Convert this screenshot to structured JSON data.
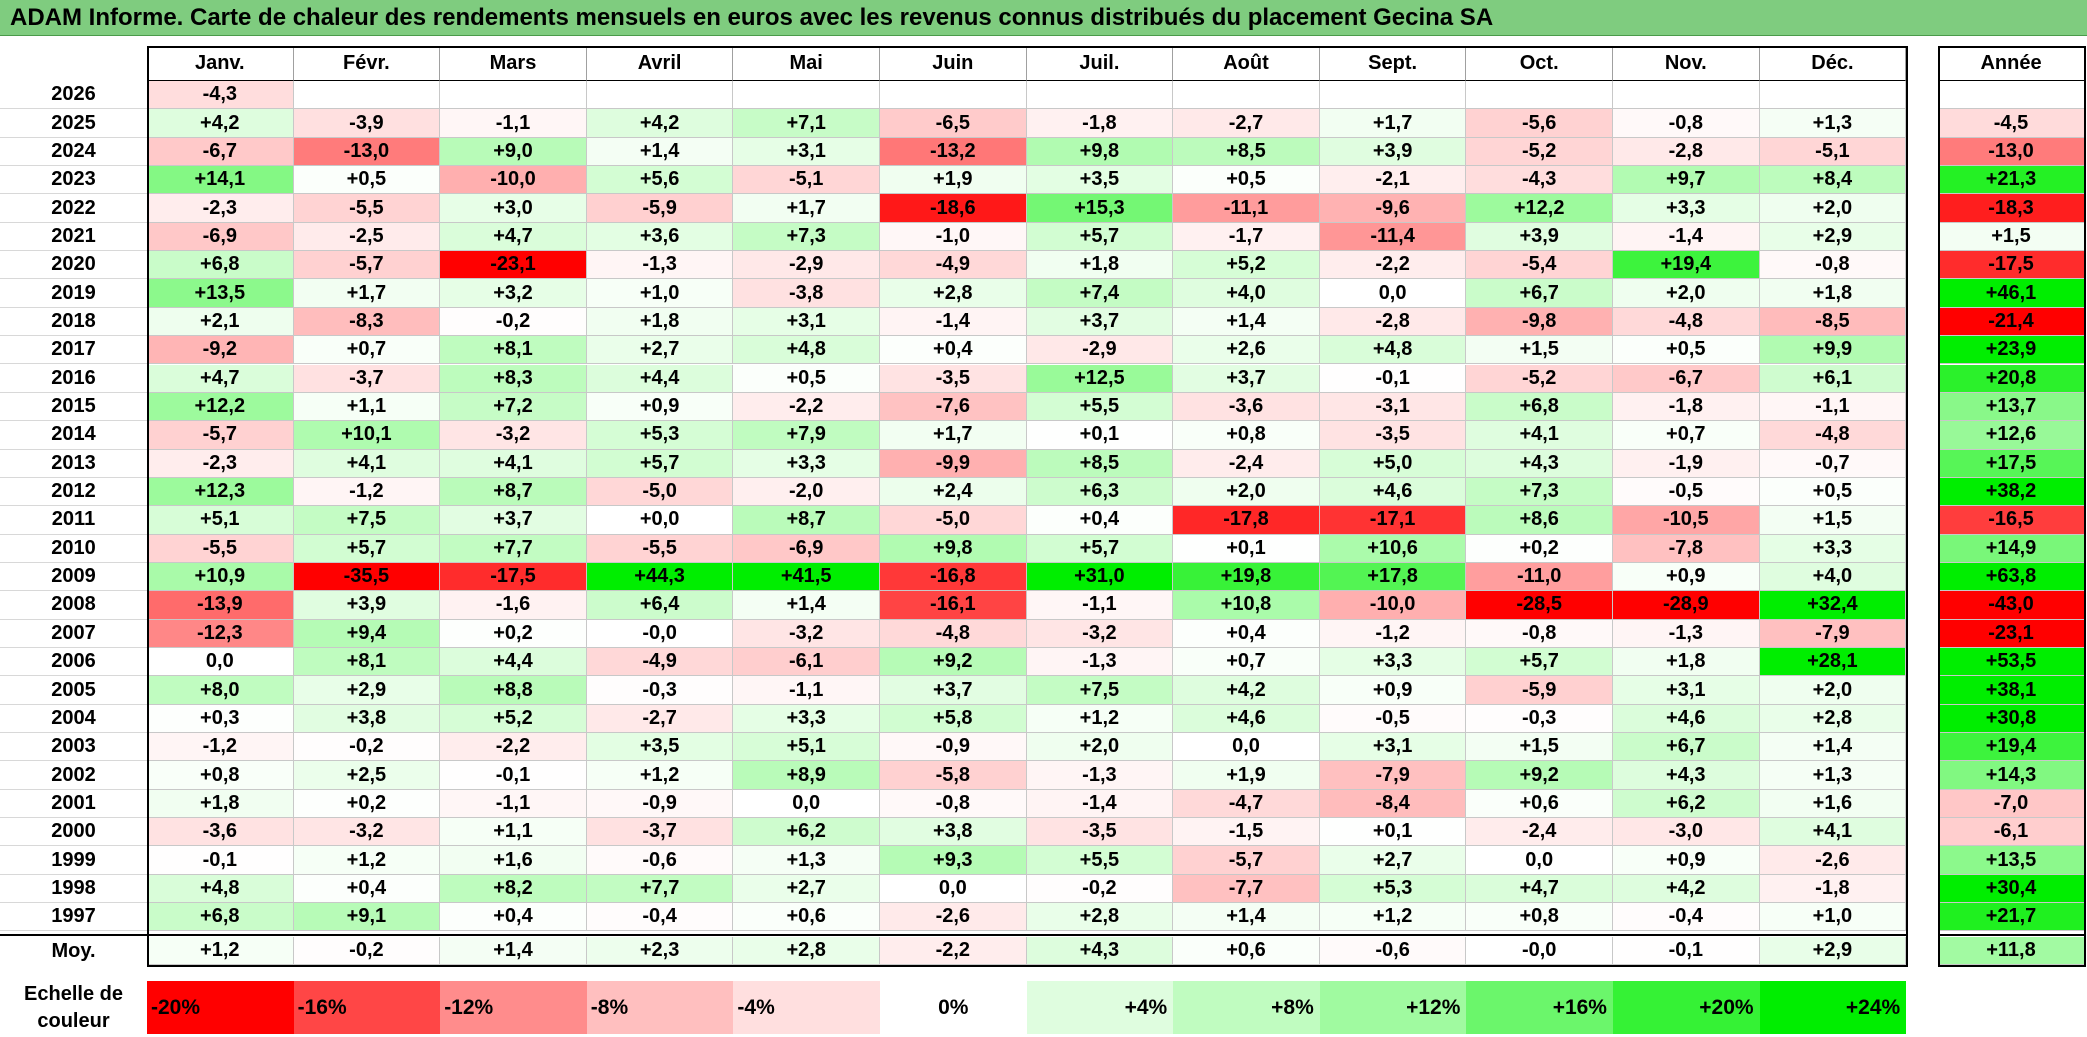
{
  "title": "ADAM Informe. Carte de chaleur des rendements mensuels en euros avec les revenus connus distribués du placement Gecina SA",
  "colors": {
    "positive_max": "#00ee00",
    "negative_max": "#ff0000",
    "neutral": "#ffffff",
    "title_bg": "#7fcc7f"
  },
  "chart_data": {
    "type": "heatmap",
    "title": "ADAM Informe. Carte de chaleur des rendements mensuels en euros avec les revenus connus distribués du placement Gecina SA",
    "columns": [
      "Janv.",
      "Févr.",
      "Mars",
      "Avril",
      "Mai",
      "Juin",
      "Juil.",
      "Août",
      "Sept.",
      "Oct.",
      "Nov.",
      "Déc."
    ],
    "year_column_label": "Année",
    "rows": [
      {
        "year": "2026",
        "values": [
          "-4,3",
          "",
          "",
          "",
          "",
          "",
          "",
          "",
          "",
          "",
          "",
          ""
        ],
        "annual": ""
      },
      {
        "year": "2025",
        "values": [
          "+4,2",
          "-3,9",
          "-1,1",
          "+4,2",
          "+7,1",
          "-6,5",
          "-1,8",
          "-2,7",
          "+1,7",
          "-5,6",
          "-0,8",
          "+1,3"
        ],
        "annual": "-4,5"
      },
      {
        "year": "2024",
        "values": [
          "-6,7",
          "-13,0",
          "+9,0",
          "+1,4",
          "+3,1",
          "-13,2",
          "+9,8",
          "+8,5",
          "+3,9",
          "-5,2",
          "-2,8",
          "-5,1"
        ],
        "annual": "-13,0"
      },
      {
        "year": "2023",
        "values": [
          "+14,1",
          "+0,5",
          "-10,0",
          "+5,6",
          "-5,1",
          "+1,9",
          "+3,5",
          "+0,5",
          "-2,1",
          "-4,3",
          "+9,7",
          "+8,4"
        ],
        "annual": "+21,3"
      },
      {
        "year": "2022",
        "values": [
          "-2,3",
          "-5,5",
          "+3,0",
          "-5,9",
          "+1,7",
          "-18,6",
          "+15,3",
          "-11,1",
          "-9,6",
          "+12,2",
          "+3,3",
          "+2,0"
        ],
        "annual": "-18,3"
      },
      {
        "year": "2021",
        "values": [
          "-6,9",
          "-2,5",
          "+4,7",
          "+3,6",
          "+7,3",
          "-1,0",
          "+5,7",
          "-1,7",
          "-11,4",
          "+3,9",
          "-1,4",
          "+2,9"
        ],
        "annual": "+1,5"
      },
      {
        "year": "2020",
        "values": [
          "+6,8",
          "-5,7",
          "-23,1",
          "-1,3",
          "-2,9",
          "-4,9",
          "+1,8",
          "+5,2",
          "-2,2",
          "-5,4",
          "+19,4",
          "-0,8"
        ],
        "annual": "-17,5"
      },
      {
        "year": "2019",
        "values": [
          "+13,5",
          "+1,7",
          "+3,2",
          "+1,0",
          "-3,8",
          "+2,8",
          "+7,4",
          "+4,0",
          "0,0",
          "+6,7",
          "+2,0",
          "+1,8"
        ],
        "annual": "+46,1"
      },
      {
        "year": "2018",
        "values": [
          "+2,1",
          "-8,3",
          "-0,2",
          "+1,8",
          "+3,1",
          "-1,4",
          "+3,7",
          "+1,4",
          "-2,8",
          "-9,8",
          "-4,8",
          "-8,5"
        ],
        "annual": "-21,4"
      },
      {
        "year": "2017",
        "values": [
          "-9,2",
          "+0,7",
          "+8,1",
          "+2,7",
          "+4,8",
          "+0,4",
          "-2,9",
          "+2,6",
          "+4,8",
          "+1,5",
          "+0,5",
          "+9,9"
        ],
        "annual": "+23,9"
      },
      {
        "year": "2016",
        "values": [
          "+4,7",
          "-3,7",
          "+8,3",
          "+4,4",
          "+0,5",
          "-3,5",
          "+12,5",
          "+3,7",
          "-0,1",
          "-5,2",
          "-6,7",
          "+6,1"
        ],
        "annual": "+20,8"
      },
      {
        "year": "2015",
        "values": [
          "+12,2",
          "+1,1",
          "+7,2",
          "+0,9",
          "-2,2",
          "-7,6",
          "+5,5",
          "-3,6",
          "-3,1",
          "+6,8",
          "-1,8",
          "-1,1"
        ],
        "annual": "+13,7"
      },
      {
        "year": "2014",
        "values": [
          "-5,7",
          "+10,1",
          "-3,2",
          "+5,3",
          "+7,9",
          "+1,7",
          "+0,1",
          "+0,8",
          "-3,5",
          "+4,1",
          "+0,7",
          "-4,8"
        ],
        "annual": "+12,6"
      },
      {
        "year": "2013",
        "values": [
          "-2,3",
          "+4,1",
          "+4,1",
          "+5,7",
          "+3,3",
          "-9,9",
          "+8,5",
          "-2,4",
          "+5,0",
          "+4,3",
          "-1,9",
          "-0,7"
        ],
        "annual": "+17,5"
      },
      {
        "year": "2012",
        "values": [
          "+12,3",
          "-1,2",
          "+8,7",
          "-5,0",
          "-2,0",
          "+2,4",
          "+6,3",
          "+2,0",
          "+4,6",
          "+7,3",
          "-0,5",
          "+0,5"
        ],
        "annual": "+38,2"
      },
      {
        "year": "2011",
        "values": [
          "+5,1",
          "+7,5",
          "+3,7",
          "+0,0",
          "+8,7",
          "-5,0",
          "+0,4",
          "-17,8",
          "-17,1",
          "+8,6",
          "-10,5",
          "+1,5"
        ],
        "annual": "-16,5"
      },
      {
        "year": "2010",
        "values": [
          "-5,5",
          "+5,7",
          "+7,7",
          "-5,5",
          "-6,9",
          "+9,8",
          "+5,7",
          "+0,1",
          "+10,6",
          "+0,2",
          "-7,8",
          "+3,3"
        ],
        "annual": "+14,9"
      },
      {
        "year": "2009",
        "values": [
          "+10,9",
          "-35,5",
          "-17,5",
          "+44,3",
          "+41,5",
          "-16,8",
          "+31,0",
          "+19,8",
          "+17,8",
          "-11,0",
          "+0,9",
          "+4,0"
        ],
        "annual": "+63,8"
      },
      {
        "year": "2008",
        "values": [
          "-13,9",
          "+3,9",
          "-1,6",
          "+6,4",
          "+1,4",
          "-16,1",
          "-1,1",
          "+10,8",
          "-10,0",
          "-28,5",
          "-28,9",
          "+32,4"
        ],
        "annual": "-43,0"
      },
      {
        "year": "2007",
        "values": [
          "-12,3",
          "+9,4",
          "+0,2",
          "-0,0",
          "-3,2",
          "-4,8",
          "-3,2",
          "+0,4",
          "-1,2",
          "-0,8",
          "-1,3",
          "-7,9"
        ],
        "annual": "-23,1"
      },
      {
        "year": "2006",
        "values": [
          "0,0",
          "+8,1",
          "+4,4",
          "-4,9",
          "-6,1",
          "+9,2",
          "-1,3",
          "+0,7",
          "+3,3",
          "+5,7",
          "+1,8",
          "+28,1"
        ],
        "annual": "+53,5"
      },
      {
        "year": "2005",
        "values": [
          "+8,0",
          "+2,9",
          "+8,8",
          "-0,3",
          "-1,1",
          "+3,7",
          "+7,5",
          "+4,2",
          "+0,9",
          "-5,9",
          "+3,1",
          "+2,0"
        ],
        "annual": "+38,1"
      },
      {
        "year": "2004",
        "values": [
          "+0,3",
          "+3,8",
          "+5,2",
          "-2,7",
          "+3,3",
          "+5,8",
          "+1,2",
          "+4,6",
          "-0,5",
          "-0,3",
          "+4,6",
          "+2,8"
        ],
        "annual": "+30,8"
      },
      {
        "year": "2003",
        "values": [
          "-1,2",
          "-0,2",
          "-2,2",
          "+3,5",
          "+5,1",
          "-0,9",
          "+2,0",
          "0,0",
          "+3,1",
          "+1,5",
          "+6,7",
          "+1,4"
        ],
        "annual": "+19,4"
      },
      {
        "year": "2002",
        "values": [
          "+0,8",
          "+2,5",
          "-0,1",
          "+1,2",
          "+8,9",
          "-5,8",
          "-1,3",
          "+1,9",
          "-7,9",
          "+9,2",
          "+4,3",
          "+1,3"
        ],
        "annual": "+14,3"
      },
      {
        "year": "2001",
        "values": [
          "+1,8",
          "+0,2",
          "-1,1",
          "-0,9",
          "0,0",
          "-0,8",
          "-1,4",
          "-4,7",
          "-8,4",
          "+0,6",
          "+6,2",
          "+1,6"
        ],
        "annual": "-7,0"
      },
      {
        "year": "2000",
        "values": [
          "-3,6",
          "-3,2",
          "+1,1",
          "-3,7",
          "+6,2",
          "+3,8",
          "-3,5",
          "-1,5",
          "+0,1",
          "-2,4",
          "-3,0",
          "+4,1"
        ],
        "annual": "-6,1"
      },
      {
        "year": "1999",
        "values": [
          "-0,1",
          "+1,2",
          "+1,6",
          "-0,6",
          "+1,3",
          "+9,3",
          "+5,5",
          "-5,7",
          "+2,7",
          "0,0",
          "+0,9",
          "-2,6"
        ],
        "annual": "+13,5"
      },
      {
        "year": "1998",
        "values": [
          "+4,8",
          "+0,4",
          "+8,2",
          "+7,7",
          "+2,7",
          "0,0",
          "-0,2",
          "-7,7",
          "+5,3",
          "+4,7",
          "+4,2",
          "-1,8"
        ],
        "annual": "+30,4"
      },
      {
        "year": "1997",
        "values": [
          "+6,8",
          "+9,1",
          "+0,4",
          "-0,4",
          "+0,6",
          "-2,6",
          "+2,8",
          "+1,4",
          "+1,2",
          "+0,8",
          "-0,4",
          "+1,0"
        ],
        "annual": "+21,7"
      }
    ],
    "average": {
      "label": "Moy.",
      "values": [
        "+1,2",
        "-0,2",
        "+1,4",
        "+2,3",
        "+2,8",
        "-2,2",
        "+4,3",
        "+0,6",
        "-0,6",
        "-0,0",
        "-0,1",
        "+2,9"
      ],
      "annual": "+11,8"
    },
    "scale": {
      "label_line1": "Echelle de",
      "label_line2": "couleur",
      "items": [
        "-20%",
        "-16%",
        "-12%",
        "-8%",
        "-4%",
        "0%",
        "+4%",
        "+8%",
        "+12%",
        "+16%",
        "+20%",
        "+24%"
      ],
      "values": [
        -20,
        -16,
        -12,
        -8,
        -4,
        0,
        4,
        8,
        12,
        16,
        20,
        24
      ]
    }
  }
}
